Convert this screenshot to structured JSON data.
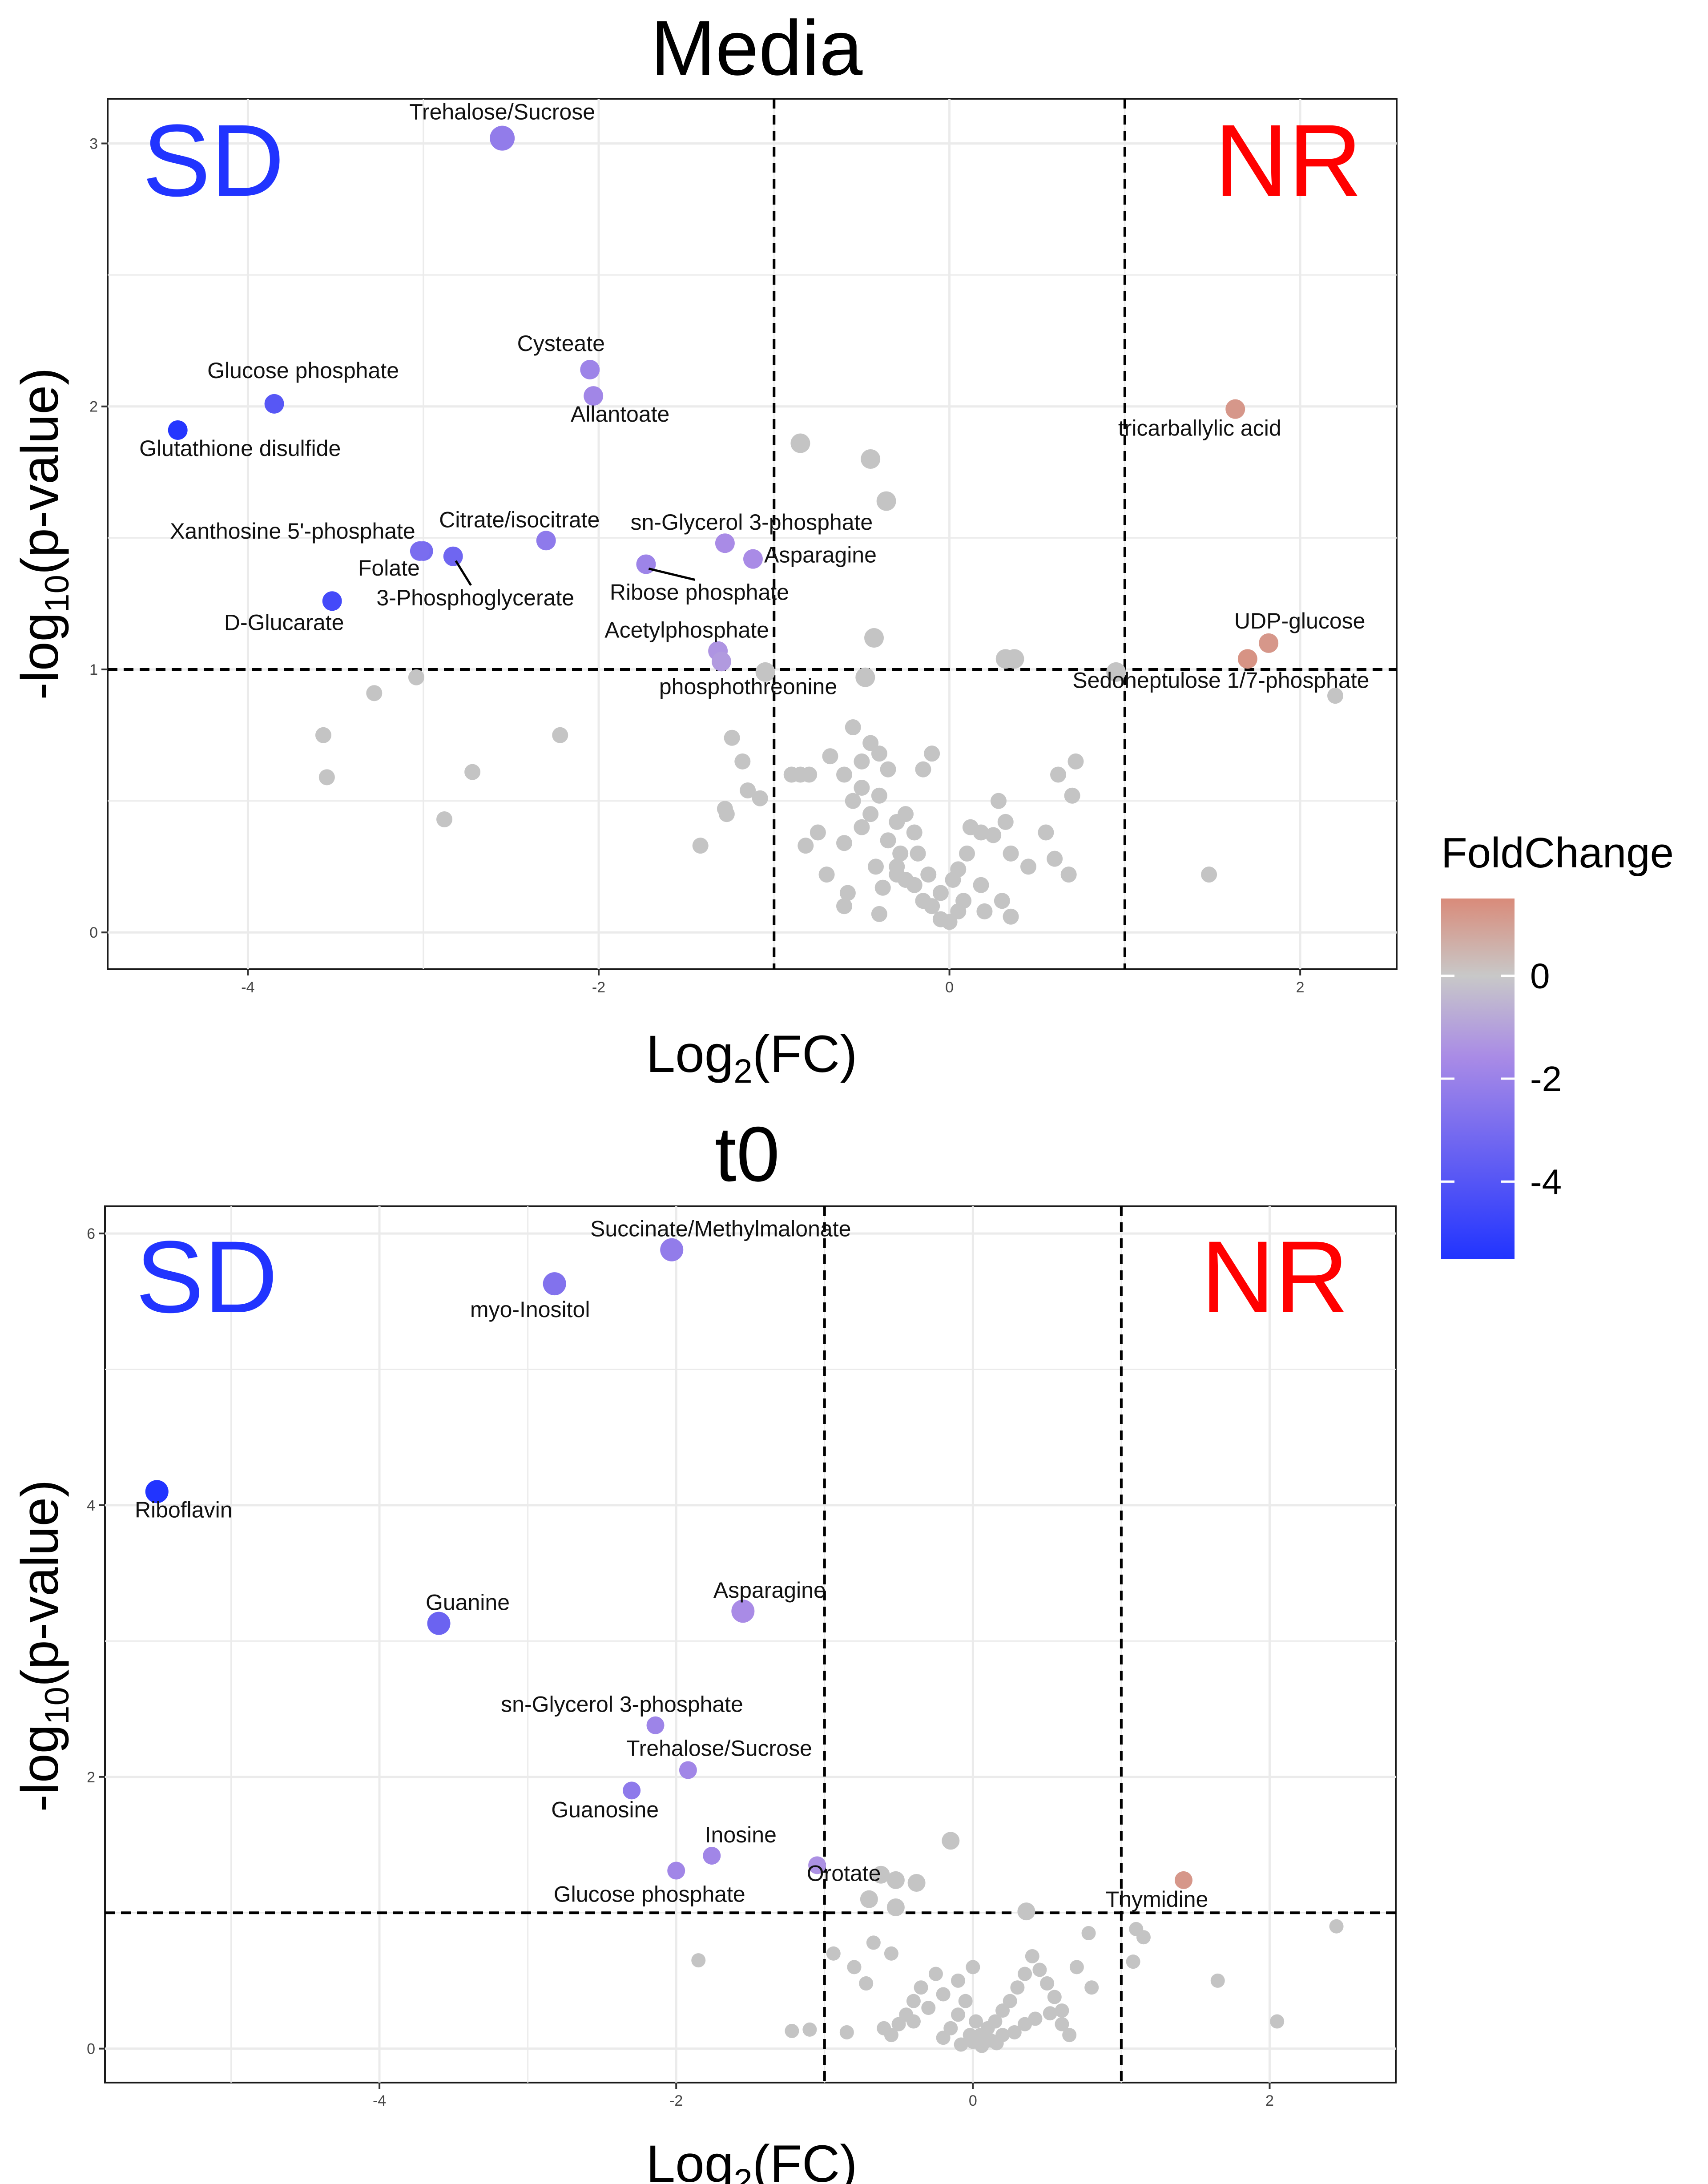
{
  "legend": {
    "title": "FoldChange",
    "ticks": [
      0,
      -2,
      -4
    ],
    "range": [
      -5.5,
      1.5
    ],
    "colors": {
      "low": "#2134ff",
      "mid": "#c8c8c8",
      "high": "#d98b7a"
    }
  },
  "chart_data": [
    {
      "type": "scatter",
      "title": "Media",
      "xlabel": "Log2(FC)",
      "ylabel": "-log10(p-value)",
      "xlim": [
        -4.8,
        2.55
      ],
      "ylim": [
        -0.14,
        3.17
      ],
      "xticks": [
        -4,
        -2,
        0,
        2
      ],
      "yticks": [
        0,
        1,
        2,
        3
      ],
      "vlines": [
        -1,
        1
      ],
      "hline": 1,
      "corner_left": {
        "text": "SD",
        "color": "#2134ff"
      },
      "corner_right": {
        "text": "NR",
        "color": "#ff0000"
      },
      "grey_color": "#c4c4c4",
      "labeled_points": [
        {
          "name": "Trehalose/Sucrose",
          "x": -2.55,
          "y": 3.02,
          "fc": -2.6
        },
        {
          "name": "Cysteate",
          "x": -2.05,
          "y": 2.14,
          "fc": -2.3
        },
        {
          "name": "Allantoate",
          "x": -2.03,
          "y": 2.04,
          "fc": -2.2
        },
        {
          "name": "Glucose phosphate",
          "x": -3.85,
          "y": 2.01,
          "fc": -4.1
        },
        {
          "name": "Glutathione disulfide",
          "x": -4.4,
          "y": 1.91,
          "fc": -5.4
        },
        {
          "name": "Xanthosine 5'-phosphate",
          "x": -3.0,
          "y": 1.45,
          "fc": -3.3
        },
        {
          "name": "Folate",
          "x": -3.02,
          "y": 1.45,
          "fc": -3.2
        },
        {
          "name": "3-Phosphoglycerate",
          "x": -2.83,
          "y": 1.43,
          "fc": -3.5
        },
        {
          "name": "Citrate/isocitrate",
          "x": -2.3,
          "y": 1.49,
          "fc": -2.7
        },
        {
          "name": "sn-Glycerol 3-phosphate",
          "x": -1.28,
          "y": 1.48,
          "fc": -2.0
        },
        {
          "name": "Asparagine",
          "x": -1.12,
          "y": 1.42,
          "fc": -2.0
        },
        {
          "name": "Ribose phosphate",
          "x": -1.73,
          "y": 1.4,
          "fc": -2.3
        },
        {
          "name": "D-Glucarate",
          "x": -3.52,
          "y": 1.26,
          "fc": -4.6
        },
        {
          "name": "Acetylphosphate",
          "x": -1.32,
          "y": 1.07,
          "fc": -1.7
        },
        {
          "name": "phosphothreonine",
          "x": -1.3,
          "y": 1.03,
          "fc": -1.5
        },
        {
          "name": "tricarballylic acid",
          "x": 1.63,
          "y": 1.99,
          "fc": 1.2
        },
        {
          "name": "UDP-glucose",
          "x": 1.82,
          "y": 1.1,
          "fc": 1.2
        },
        {
          "name": "Sedoheptulose 1/7-phosphate",
          "x": 1.7,
          "y": 1.04,
          "fc": 1.3
        }
      ],
      "grey_points": [
        [
          -0.85,
          1.86
        ],
        [
          -0.45,
          1.8
        ],
        [
          -0.36,
          1.64
        ],
        [
          -0.43,
          1.12
        ],
        [
          0.32,
          1.04
        ],
        [
          0.37,
          1.04
        ],
        [
          -0.48,
          0.97
        ],
        [
          -1.05,
          0.99
        ],
        [
          -3.04,
          0.97
        ],
        [
          -3.28,
          0.91
        ],
        [
          -3.57,
          0.75
        ],
        [
          -3.55,
          0.59
        ],
        [
          -2.72,
          0.61
        ],
        [
          -2.22,
          0.75
        ],
        [
          -2.88,
          0.43
        ],
        [
          -1.24,
          0.74
        ],
        [
          -1.18,
          0.65
        ],
        [
          -1.15,
          0.54
        ],
        [
          -1.08,
          0.51
        ],
        [
          -1.28,
          0.47
        ],
        [
          -1.27,
          0.45
        ],
        [
          -1.42,
          0.33
        ],
        [
          -0.9,
          0.6
        ],
        [
          -0.85,
          0.6
        ],
        [
          -0.8,
          0.6
        ],
        [
          -0.68,
          0.67
        ],
        [
          -0.55,
          0.78
        ],
        [
          -0.5,
          0.65
        ],
        [
          -0.45,
          0.72
        ],
        [
          -0.4,
          0.68
        ],
        [
          -0.35,
          0.62
        ],
        [
          -0.6,
          0.6
        ],
        [
          -0.55,
          0.5
        ],
        [
          -0.5,
          0.4
        ],
        [
          -0.45,
          0.45
        ],
        [
          -0.4,
          0.52
        ],
        [
          -0.3,
          0.42
        ],
        [
          -0.25,
          0.45
        ],
        [
          -0.2,
          0.38
        ],
        [
          -0.28,
          0.3
        ],
        [
          -0.35,
          0.35
        ],
        [
          -0.3,
          0.25
        ],
        [
          -0.25,
          0.2
        ],
        [
          -0.2,
          0.18
        ],
        [
          -0.15,
          0.12
        ],
        [
          -0.1,
          0.1
        ],
        [
          -0.05,
          0.05
        ],
        [
          0.0,
          0.04
        ],
        [
          0.05,
          0.08
        ],
        [
          0.08,
          0.12
        ],
        [
          -0.05,
          0.15
        ],
        [
          -0.12,
          0.22
        ],
        [
          0.1,
          0.3
        ],
        [
          0.18,
          0.38
        ],
        [
          0.28,
          0.5
        ],
        [
          0.32,
          0.42
        ],
        [
          -0.6,
          0.34
        ],
        [
          -0.75,
          0.38
        ],
        [
          -0.82,
          0.33
        ],
        [
          -0.7,
          0.22
        ],
        [
          -0.38,
          0.17
        ],
        [
          -0.58,
          0.15
        ],
        [
          -0.4,
          0.07
        ],
        [
          -0.6,
          0.1
        ],
        [
          0.35,
          0.3
        ],
        [
          0.45,
          0.25
        ],
        [
          0.3,
          0.12
        ],
        [
          0.55,
          0.38
        ],
        [
          0.6,
          0.28
        ],
        [
          0.68,
          0.22
        ],
        [
          -0.15,
          0.62
        ],
        [
          -0.1,
          0.68
        ],
        [
          0.12,
          0.4
        ],
        [
          0.25,
          0.37
        ],
        [
          0.05,
          0.24
        ],
        [
          -0.5,
          0.55
        ],
        [
          -0.42,
          0.25
        ],
        [
          0.02,
          0.2
        ],
        [
          -0.18,
          0.3
        ],
        [
          0.18,
          0.18
        ],
        [
          0.2,
          0.08
        ],
        [
          0.35,
          0.06
        ],
        [
          0.62,
          0.6
        ],
        [
          0.72,
          0.65
        ],
        [
          0.7,
          0.52
        ],
        [
          1.48,
          0.22
        ],
        [
          2.2,
          0.9
        ],
        [
          0.95,
          0.99
        ],
        [
          -0.3,
          0.22
        ]
      ]
    },
    {
      "type": "scatter",
      "title": "t0",
      "xlabel": "Log2(FC)",
      "ylabel": "-log10(p-value)",
      "xlim": [
        -5.85,
        2.85
      ],
      "ylim": [
        -0.25,
        6.2
      ],
      "xticks": [
        -4,
        -2,
        0,
        2
      ],
      "yticks": [
        0,
        2,
        4,
        6
      ],
      "vlines": [
        -1,
        1
      ],
      "hline": 1,
      "corner_left": {
        "text": "SD",
        "color": "#2134ff"
      },
      "corner_right": {
        "text": "NR",
        "color": "#ff0000"
      },
      "grey_color": "#c4c4c4",
      "labeled_points": [
        {
          "name": "Succinate/Methylmalonate",
          "x": -2.03,
          "y": 5.88,
          "fc": -2.6
        },
        {
          "name": "myo-Inositol",
          "x": -2.82,
          "y": 5.63,
          "fc": -3.0
        },
        {
          "name": "Riboflavin",
          "x": -5.5,
          "y": 4.1,
          "fc": -5.5
        },
        {
          "name": "Guanine",
          "x": -3.6,
          "y": 3.13,
          "fc": -3.6
        },
        {
          "name": "Asparagine",
          "x": -1.55,
          "y": 3.22,
          "fc": -2.0
        },
        {
          "name": "sn-Glycerol 3-phosphate",
          "x": -2.14,
          "y": 2.38,
          "fc": -2.3
        },
        {
          "name": "Trehalose/Sucrose",
          "x": -1.92,
          "y": 2.05,
          "fc": -2.2
        },
        {
          "name": "Guanosine",
          "x": -2.3,
          "y": 1.9,
          "fc": -2.7
        },
        {
          "name": "Inosine",
          "x": -1.76,
          "y": 1.42,
          "fc": -2.2
        },
        {
          "name": "Glucose phosphate",
          "x": -2.0,
          "y": 1.31,
          "fc": -2.2
        },
        {
          "name": "Orotate",
          "x": -1.05,
          "y": 1.35,
          "fc": -1.8
        },
        {
          "name": "Thymidine",
          "x": 1.42,
          "y": 1.24,
          "fc": 1.2
        }
      ],
      "grey_points": [
        [
          -0.15,
          1.53
        ],
        [
          -0.62,
          1.28
        ],
        [
          -0.52,
          1.24
        ],
        [
          -0.38,
          1.22
        ],
        [
          -0.52,
          1.04
        ],
        [
          -0.7,
          1.1
        ],
        [
          0.36,
          1.01
        ],
        [
          -0.67,
          0.78
        ],
        [
          -0.55,
          0.7
        ],
        [
          -0.94,
          0.7
        ],
        [
          -0.8,
          0.6
        ],
        [
          -0.72,
          0.48
        ],
        [
          -1.85,
          0.65
        ],
        [
          -1.22,
          0.13
        ],
        [
          -1.1,
          0.14
        ],
        [
          -0.85,
          0.12
        ],
        [
          -0.6,
          0.15
        ],
        [
          -0.4,
          0.2
        ],
        [
          -0.3,
          0.3
        ],
        [
          -0.2,
          0.4
        ],
        [
          -0.1,
          0.5
        ],
        [
          0.0,
          0.6
        ],
        [
          -0.05,
          0.35
        ],
        [
          -0.1,
          0.25
        ],
        [
          -0.15,
          0.15
        ],
        [
          -0.2,
          0.08
        ],
        [
          0.0,
          0.05
        ],
        [
          0.05,
          0.1
        ],
        [
          0.1,
          0.15
        ],
        [
          0.15,
          0.2
        ],
        [
          0.2,
          0.28
        ],
        [
          0.25,
          0.35
        ],
        [
          0.3,
          0.45
        ],
        [
          0.35,
          0.55
        ],
        [
          0.4,
          0.68
        ],
        [
          0.45,
          0.58
        ],
        [
          0.5,
          0.48
        ],
        [
          0.55,
          0.38
        ],
        [
          0.6,
          0.28
        ],
        [
          0.08,
          0.05
        ],
        [
          0.12,
          0.06
        ],
        [
          0.2,
          0.1
        ],
        [
          0.28,
          0.12
        ],
        [
          0.35,
          0.18
        ],
        [
          0.42,
          0.22
        ],
        [
          0.52,
          0.26
        ],
        [
          0.6,
          0.18
        ],
        [
          0.65,
          0.1
        ],
        [
          -0.25,
          0.55
        ],
        [
          -0.35,
          0.45
        ],
        [
          -0.4,
          0.35
        ],
        [
          -0.45,
          0.25
        ],
        [
          -0.5,
          0.18
        ],
        [
          -0.55,
          0.1
        ],
        [
          0.78,
          0.85
        ],
        [
          0.7,
          0.6
        ],
        [
          0.8,
          0.45
        ],
        [
          1.1,
          0.88
        ],
        [
          1.15,
          0.82
        ],
        [
          1.08,
          0.64
        ],
        [
          1.65,
          0.5
        ],
        [
          2.05,
          0.2
        ],
        [
          2.45,
          0.9
        ],
        [
          0.02,
          0.2
        ],
        [
          -0.02,
          0.1
        ],
        [
          0.06,
          0.02
        ],
        [
          -0.08,
          0.03
        ],
        [
          0.16,
          0.04
        ]
      ]
    }
  ]
}
